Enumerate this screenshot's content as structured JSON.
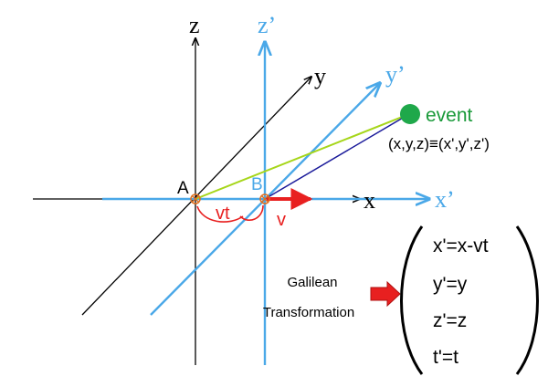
{
  "colors": {
    "frame_s": "#000000",
    "frame_s_prime": "#4aa8e8",
    "velocity": "#e82020",
    "event_dot": "#1fa84a",
    "event_text": "#1a9a3a",
    "line_from_a": "#a6d61a",
    "line_from_b": "#1a1a9a",
    "origin_marker": "#e07020"
  },
  "axes": {
    "z": "z",
    "y": "y",
    "x": "x",
    "z_prime": "z’",
    "y_prime": "y’",
    "x_prime": "x’"
  },
  "origins": {
    "a": "A",
    "b": "B"
  },
  "motion": {
    "displacement": "vt",
    "velocity": "v"
  },
  "event": {
    "label": "event",
    "equivalence": "(x,y,z)≡(x',y',z')"
  },
  "transformation": {
    "title_line1": "Galilean",
    "title_line2": "Transformation",
    "equations": [
      "x'=x-vt",
      "y'=y",
      "z'=z",
      "t'=t"
    ]
  }
}
